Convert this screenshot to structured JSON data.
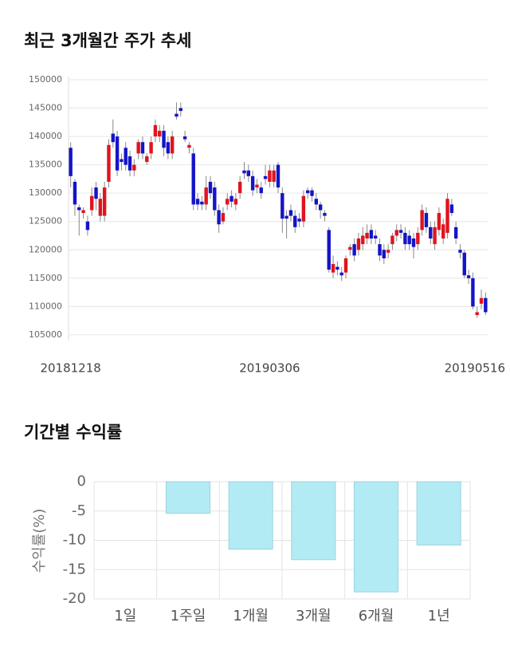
{
  "chart_data": [
    {
      "type": "candlestick",
      "title": "최근 3개월간 주가 추세",
      "categories": [
        "20181218",
        null,
        null,
        null,
        null,
        null,
        null,
        null,
        null,
        null,
        null,
        null,
        null,
        null,
        null,
        null,
        null,
        null,
        null,
        null,
        null,
        null,
        null,
        null,
        null,
        null,
        null,
        null,
        null,
        null,
        null,
        null,
        null,
        null,
        null,
        null,
        null,
        null,
        null,
        null,
        null,
        null,
        null,
        null,
        null,
        null,
        null,
        "20190306",
        null,
        null,
        null,
        null,
        null,
        null,
        null,
        null,
        null,
        null,
        null,
        null,
        null,
        null,
        null,
        null,
        null,
        null,
        null,
        null,
        null,
        null,
        null,
        null,
        null,
        null,
        null,
        null,
        null,
        null,
        null,
        null,
        null,
        null,
        null,
        null,
        null,
        null,
        null,
        null,
        null,
        null,
        null,
        null,
        null,
        null,
        null,
        null,
        null,
        null,
        "20190516"
      ],
      "open": [
        138000,
        132000,
        127500,
        126500,
        125000,
        127000,
        131000,
        126000,
        126000,
        132000,
        140500,
        140000,
        136000,
        138000,
        136500,
        134000,
        137000,
        139000,
        135500,
        137000,
        140000,
        140000,
        141000,
        139000,
        137000,
        144000,
        145000,
        140000,
        138000,
        137000,
        129000,
        128500,
        128000,
        132000,
        131000,
        127000,
        125000,
        128000,
        129500,
        128000,
        130000,
        134000,
        134000,
        133000,
        131000,
        131000,
        133000,
        132000,
        132000,
        135000,
        130000,
        126000,
        127000,
        126000,
        125500,
        125000,
        130500,
        130500,
        129000,
        128000,
        126500,
        123500,
        116000,
        117000,
        116000,
        116000,
        120000,
        121000,
        120000,
        121000,
        122000,
        123500,
        122500,
        121000,
        120000,
        119500,
        121000,
        122500,
        123500,
        123000,
        122500,
        122000,
        121000,
        123500,
        126500,
        124000,
        121000,
        123500,
        122000,
        123000,
        128000,
        124000,
        120000,
        119500,
        115500,
        115000,
        108500,
        110500,
        111500
      ],
      "high": [
        139000,
        132500,
        128000,
        127500,
        126000,
        131000,
        132000,
        130000,
        132000,
        139500,
        143000,
        141000,
        137000,
        139000,
        137500,
        136000,
        139500,
        140000,
        137000,
        140000,
        143000,
        142000,
        142000,
        140000,
        141000,
        146000,
        146000,
        141000,
        139000,
        138000,
        130000,
        129500,
        133000,
        133000,
        132000,
        128000,
        127500,
        130000,
        130500,
        130000,
        133000,
        135500,
        135000,
        134000,
        132500,
        132000,
        135000,
        135000,
        135000,
        135500,
        131000,
        127000,
        128000,
        127000,
        126500,
        130500,
        131000,
        131000,
        130000,
        128500,
        127000,
        124000,
        119000,
        118000,
        117000,
        119000,
        121000,
        122000,
        123000,
        124000,
        124500,
        124500,
        123500,
        122000,
        121000,
        121000,
        123000,
        124500,
        124500,
        124000,
        123500,
        123000,
        124000,
        128000,
        127500,
        125000,
        125000,
        127500,
        125500,
        130000,
        129000,
        125000,
        121000,
        120000,
        116500,
        116000,
        110000,
        113000,
        112500
      ],
      "low": [
        131000,
        126000,
        122500,
        125500,
        122500,
        126000,
        127000,
        125000,
        125000,
        131000,
        138000,
        133000,
        134000,
        134000,
        133000,
        133000,
        136000,
        136000,
        135000,
        136000,
        139000,
        139000,
        136500,
        136000,
        136000,
        143000,
        143500,
        139000,
        137000,
        127000,
        127000,
        127000,
        127000,
        129000,
        126000,
        123000,
        124500,
        127000,
        127500,
        127000,
        129000,
        132500,
        132000,
        129500,
        130000,
        129000,
        131500,
        131000,
        131000,
        130000,
        123000,
        122000,
        125000,
        123000,
        124000,
        124000,
        129000,
        128500,
        127000,
        125500,
        125000,
        116000,
        115000,
        115500,
        114500,
        115000,
        119000,
        118000,
        119000,
        120000,
        121000,
        121000,
        121000,
        118000,
        117500,
        118500,
        120000,
        121500,
        122000,
        120000,
        120000,
        118500,
        120000,
        122500,
        123000,
        121000,
        120000,
        122500,
        121000,
        122000,
        126000,
        121000,
        118500,
        115000,
        114000,
        109500,
        108000,
        109500,
        108500
      ],
      "close": [
        133000,
        128000,
        127000,
        127000,
        123500,
        129500,
        129000,
        129000,
        131000,
        138500,
        139000,
        134000,
        135500,
        135000,
        134000,
        135000,
        139000,
        137000,
        136500,
        139000,
        142000,
        141000,
        138000,
        137000,
        140000,
        143500,
        144500,
        139500,
        138500,
        128000,
        128000,
        128000,
        131000,
        130000,
        127000,
        124500,
        126500,
        129000,
        128500,
        129000,
        132000,
        133500,
        133000,
        130500,
        131500,
        130000,
        132500,
        134000,
        134000,
        131000,
        125500,
        125500,
        126000,
        124000,
        125000,
        129500,
        130000,
        129500,
        128000,
        127000,
        126000,
        116500,
        117500,
        116500,
        115500,
        118500,
        120500,
        119000,
        122000,
        122500,
        123000,
        122000,
        122000,
        119000,
        118500,
        120000,
        122500,
        123500,
        123000,
        121000,
        121000,
        120500,
        123000,
        127000,
        124000,
        122000,
        124000,
        126500,
        124500,
        129000,
        126500,
        122000,
        119500,
        115500,
        115000,
        110000,
        109000,
        111500,
        109000
      ],
      "up_color": "#e0141e",
      "down_color": "#1414c8",
      "ylim": [
        104000,
        150000
      ],
      "yticks": [
        105000,
        110000,
        115000,
        120000,
        125000,
        130000,
        135000,
        140000,
        145000,
        150000
      ],
      "grid": true
    },
    {
      "type": "bar",
      "title": "기간별 수익률",
      "y_label": "수익률(%)",
      "categories": [
        "1일",
        "1주일",
        "1개월",
        "3개월",
        "6개월",
        "1년"
      ],
      "values": [
        0,
        -5.4,
        -11.5,
        -13.3,
        -18.8,
        -10.8
      ],
      "color": "#b3ebf4",
      "ylim": [
        -20,
        0
      ],
      "yticks": [
        0,
        -5,
        -10,
        -15,
        -20
      ],
      "grid": true
    }
  ]
}
